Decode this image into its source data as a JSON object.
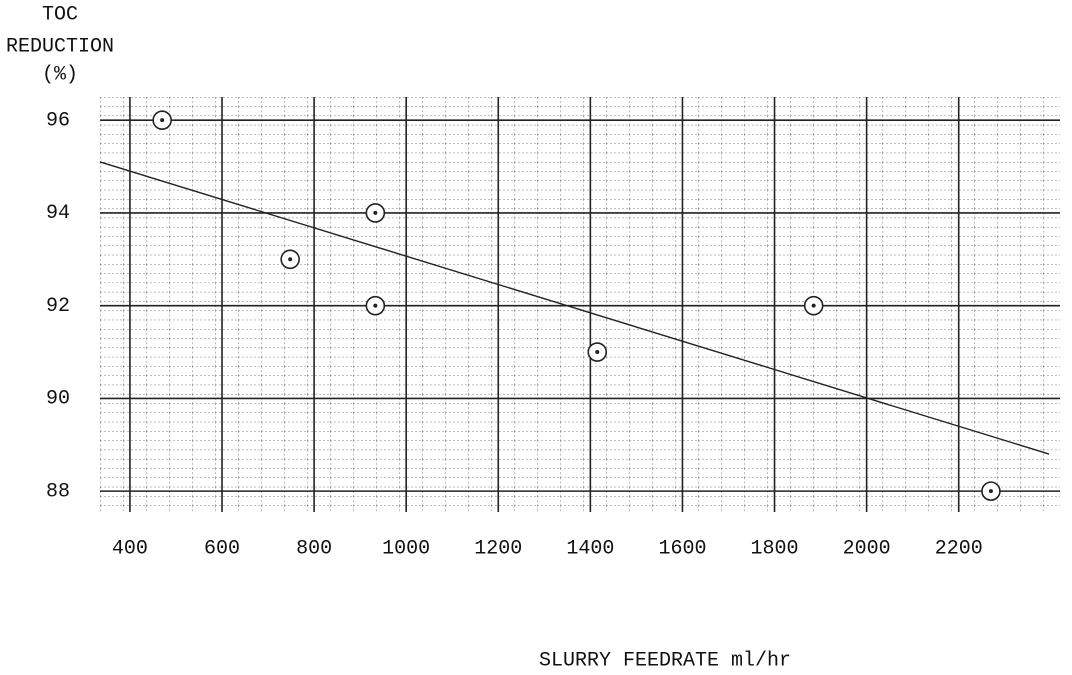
{
  "chart_data": {
    "type": "scatter",
    "ylabel": [
      "TOC",
      "REDUCTION",
      "(%)"
    ],
    "xlabel": "SLURRY FEEDRATE ml/hr",
    "x": [
      470,
      748,
      933,
      933,
      1415,
      1885,
      2270
    ],
    "values": [
      96,
      93,
      94,
      92,
      91,
      92,
      88
    ],
    "trend": {
      "x": [
        335,
        2396
      ],
      "values": [
        95.1,
        88.8
      ]
    },
    "xlim": [
      335,
      2420
    ],
    "ylim": [
      87.55,
      96.5
    ],
    "xticks": [
      400,
      600,
      800,
      1000,
      1200,
      1400,
      1600,
      1800,
      2000,
      2200
    ],
    "yticks": [
      88,
      90,
      92,
      94,
      96
    ],
    "grid": true,
    "color": "#222"
  }
}
